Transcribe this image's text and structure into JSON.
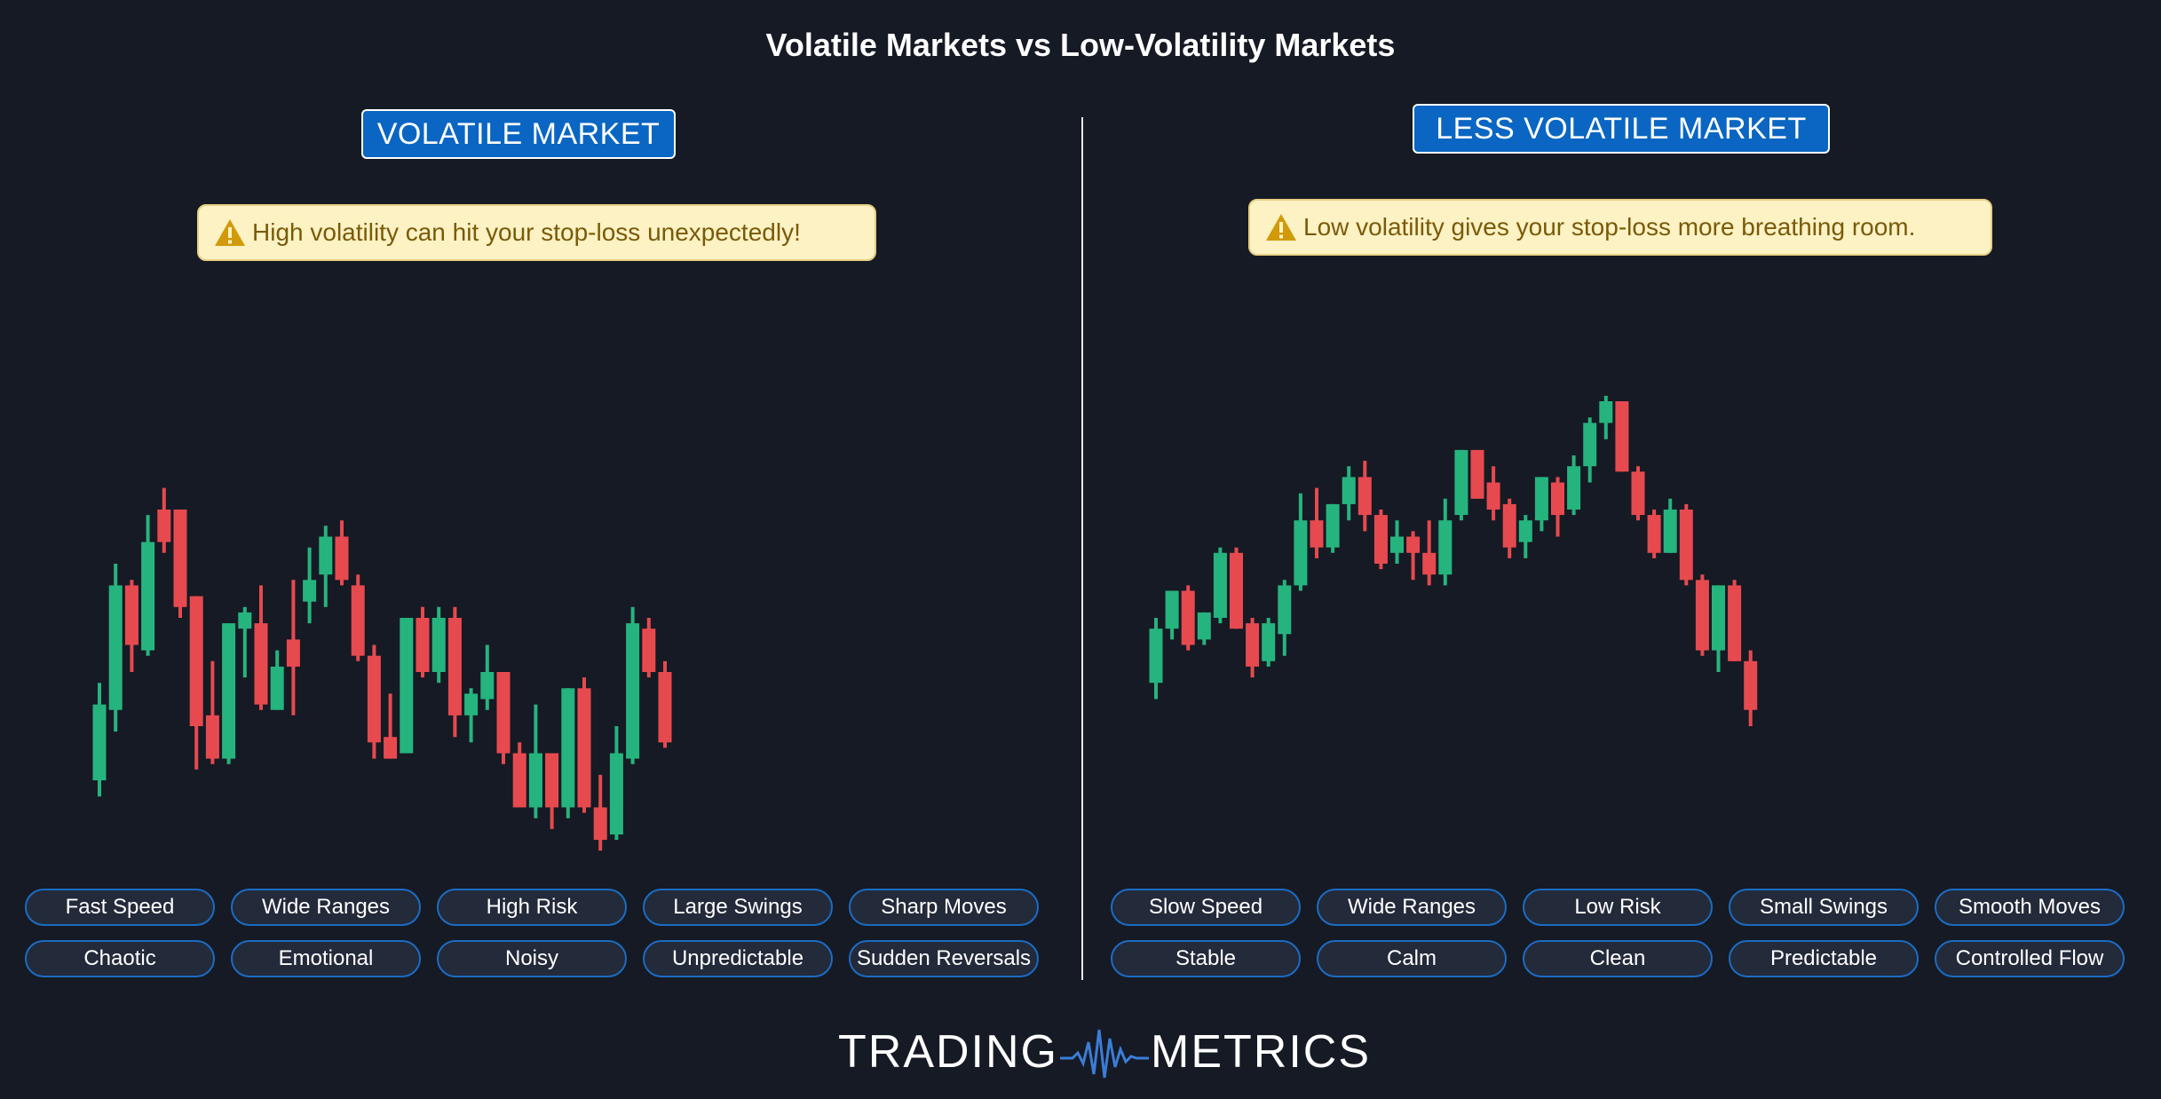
{
  "title": "Volatile Markets vs Low-Volatility Markets",
  "panels": [
    {
      "badge": "VOLATILE MARKET",
      "warning": "High volatility can hit your stop-loss unexpectedly!",
      "tags_row1": [
        "Fast Speed",
        "Wide Ranges",
        "High Risk",
        "Large Swings",
        "Sharp Moves"
      ],
      "tags_row2": [
        "Chaotic",
        "Emotional",
        "Noisy",
        "Unpredictable",
        "Sudden Reversals"
      ]
    },
    {
      "badge": "LESS VOLATILE MARKET",
      "warning": "Low volatility gives your stop-loss more breathing room.",
      "tags_row1": [
        "Slow Speed",
        "Wide Ranges",
        "Low Risk",
        "Small Swings",
        "Smooth Moves"
      ],
      "tags_row2": [
        "Stable",
        "Calm",
        "Clean",
        "Predictable",
        "Controlled Flow"
      ]
    }
  ],
  "logo": {
    "left": "TRADING",
    "right": "METRICS"
  },
  "colors": {
    "up": "#26b47e",
    "down": "#e64a4f",
    "background": "#161a24",
    "accent": "#0a66c2",
    "warning_bg": "#fcf2c4",
    "warning_text": "#7a5a08"
  },
  "chart_data": [
    {
      "type": "candlestick",
      "title": "VOLATILE MARKET",
      "ylim": [
        0,
        100
      ],
      "candles": [
        {
          "o": 10,
          "h": 28,
          "l": 7,
          "c": 24
        },
        {
          "o": 23,
          "h": 50,
          "l": 19,
          "c": 46
        },
        {
          "o": 46,
          "h": 47,
          "l": 30,
          "c": 35
        },
        {
          "o": 34,
          "h": 59,
          "l": 33,
          "c": 54
        },
        {
          "o": 60,
          "h": 64,
          "l": 52,
          "c": 54
        },
        {
          "o": 60,
          "h": 60,
          "l": 40,
          "c": 42
        },
        {
          "o": 44,
          "h": 44,
          "l": 12,
          "c": 20
        },
        {
          "o": 22,
          "h": 32,
          "l": 13,
          "c": 14
        },
        {
          "o": 14,
          "h": 39,
          "l": 13,
          "c": 39
        },
        {
          "o": 38,
          "h": 42,
          "l": 29,
          "c": 41
        },
        {
          "o": 39,
          "h": 46,
          "l": 23,
          "c": 24
        },
        {
          "o": 23,
          "h": 34,
          "l": 23,
          "c": 31
        },
        {
          "o": 36,
          "h": 47,
          "l": 22,
          "c": 31
        },
        {
          "o": 43,
          "h": 53,
          "l": 39,
          "c": 47
        },
        {
          "o": 48,
          "h": 57,
          "l": 42,
          "c": 55
        },
        {
          "o": 55,
          "h": 58,
          "l": 46,
          "c": 47
        },
        {
          "o": 46,
          "h": 48,
          "l": 32,
          "c": 33
        },
        {
          "o": 33,
          "h": 35,
          "l": 14,
          "c": 17
        },
        {
          "o": 18,
          "h": 26,
          "l": 14,
          "c": 14
        },
        {
          "o": 15,
          "h": 40,
          "l": 15,
          "c": 40
        },
        {
          "o": 40,
          "h": 42,
          "l": 29,
          "c": 30
        },
        {
          "o": 30,
          "h": 42,
          "l": 28,
          "c": 40
        },
        {
          "o": 40,
          "h": 42,
          "l": 18,
          "c": 22
        },
        {
          "o": 22,
          "h": 27,
          "l": 17,
          "c": 26
        },
        {
          "o": 25,
          "h": 35,
          "l": 23,
          "c": 30
        },
        {
          "o": 30,
          "h": 30,
          "l": 13,
          "c": 15
        },
        {
          "o": 15,
          "h": 17,
          "l": 5,
          "c": 5
        },
        {
          "o": 5,
          "h": 24,
          "l": 3,
          "c": 15
        },
        {
          "o": 15,
          "h": 15,
          "l": 1,
          "c": 5
        },
        {
          "o": 5,
          "h": 27,
          "l": 3,
          "c": 27
        },
        {
          "o": 27,
          "h": 29,
          "l": 4,
          "c": 5
        },
        {
          "o": 5,
          "h": 11,
          "l": -3,
          "c": -1
        },
        {
          "o": 0,
          "h": 20,
          "l": -1,
          "c": 15
        },
        {
          "o": 14,
          "h": 42,
          "l": 13,
          "c": 39
        },
        {
          "o": 38,
          "h": 40,
          "l": 29,
          "c": 30
        },
        {
          "o": 30,
          "h": 32,
          "l": 16,
          "c": 17
        }
      ]
    },
    {
      "type": "candlestick",
      "title": "LESS VOLATILE MARKET",
      "ylim": [
        0,
        100
      ],
      "candles": [
        {
          "o": 28,
          "h": 40,
          "l": 25,
          "c": 38
        },
        {
          "o": 38,
          "h": 45,
          "l": 36,
          "c": 45
        },
        {
          "o": 45,
          "h": 46,
          "l": 34,
          "c": 35
        },
        {
          "o": 36,
          "h": 41,
          "l": 35,
          "c": 41
        },
        {
          "o": 40,
          "h": 53,
          "l": 39,
          "c": 52
        },
        {
          "o": 52,
          "h": 53,
          "l": 38,
          "c": 38
        },
        {
          "o": 39,
          "h": 40,
          "l": 29,
          "c": 31
        },
        {
          "o": 32,
          "h": 40,
          "l": 31,
          "c": 39
        },
        {
          "o": 37,
          "h": 47,
          "l": 33,
          "c": 46
        },
        {
          "o": 46,
          "h": 63,
          "l": 45,
          "c": 58
        },
        {
          "o": 58,
          "h": 64,
          "l": 51,
          "c": 53
        },
        {
          "o": 53,
          "h": 61,
          "l": 52,
          "c": 61
        },
        {
          "o": 61,
          "h": 68,
          "l": 58,
          "c": 66
        },
        {
          "o": 66,
          "h": 69,
          "l": 56,
          "c": 59
        },
        {
          "o": 59,
          "h": 60,
          "l": 49,
          "c": 50
        },
        {
          "o": 52,
          "h": 58,
          "l": 50,
          "c": 55
        },
        {
          "o": 55,
          "h": 56,
          "l": 47,
          "c": 52
        },
        {
          "o": 52,
          "h": 58,
          "l": 46,
          "c": 48
        },
        {
          "o": 48,
          "h": 62,
          "l": 46,
          "c": 58
        },
        {
          "o": 59,
          "h": 71,
          "l": 58,
          "c": 71
        },
        {
          "o": 71,
          "h": 71,
          "l": 62,
          "c": 62
        },
        {
          "o": 65,
          "h": 68,
          "l": 58,
          "c": 60
        },
        {
          "o": 61,
          "h": 62,
          "l": 51,
          "c": 53
        },
        {
          "o": 54,
          "h": 59,
          "l": 51,
          "c": 58
        },
        {
          "o": 58,
          "h": 66,
          "l": 56,
          "c": 66
        },
        {
          "o": 65,
          "h": 66,
          "l": 55,
          "c": 59
        },
        {
          "o": 60,
          "h": 70,
          "l": 59,
          "c": 68
        },
        {
          "o": 68,
          "h": 77,
          "l": 65,
          "c": 76
        },
        {
          "o": 76,
          "h": 81,
          "l": 73,
          "c": 80
        },
        {
          "o": 80,
          "h": 80,
          "l": 67,
          "c": 67
        },
        {
          "o": 67,
          "h": 68,
          "l": 58,
          "c": 59
        },
        {
          "o": 59,
          "h": 60,
          "l": 51,
          "c": 52
        },
        {
          "o": 52,
          "h": 62,
          "l": 52,
          "c": 60
        },
        {
          "o": 60,
          "h": 61,
          "l": 46,
          "c": 47
        },
        {
          "o": 47,
          "h": 48,
          "l": 33,
          "c": 34
        },
        {
          "o": 34,
          "h": 46,
          "l": 30,
          "c": 46
        },
        {
          "o": 46,
          "h": 47,
          "l": 32,
          "c": 32
        },
        {
          "o": 32,
          "h": 34,
          "l": 20,
          "c": 23
        }
      ]
    }
  ]
}
